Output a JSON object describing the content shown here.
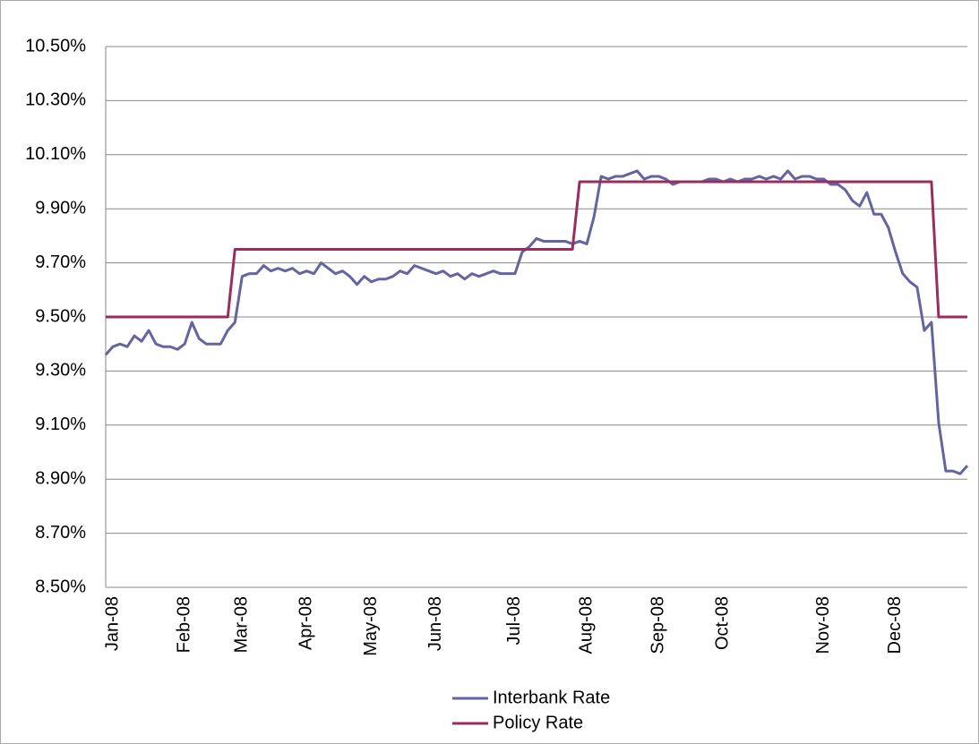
{
  "chart_data": {
    "type": "line",
    "categories": [
      null,
      "Jan-08",
      null,
      null,
      null,
      null,
      null,
      null,
      null,
      null,
      null,
      "Feb-08",
      null,
      null,
      null,
      null,
      null,
      null,
      null,
      "Mar-08",
      null,
      null,
      null,
      null,
      null,
      null,
      null,
      null,
      "Apr-08",
      null,
      null,
      null,
      null,
      null,
      null,
      null,
      null,
      "May-08",
      null,
      null,
      null,
      null,
      null,
      null,
      null,
      null,
      "Jun-08",
      null,
      null,
      null,
      null,
      null,
      null,
      null,
      null,
      null,
      null,
      "Jul-08",
      null,
      null,
      null,
      null,
      null,
      null,
      null,
      null,
      null,
      "Aug-08",
      null,
      null,
      null,
      null,
      null,
      null,
      null,
      null,
      null,
      "Sep-08",
      null,
      null,
      null,
      null,
      null,
      null,
      null,
      null,
      "Oct-08",
      null,
      null,
      null,
      null,
      null,
      null,
      null,
      null,
      null,
      null,
      null,
      null,
      null,
      "Nov-08",
      null,
      null,
      null,
      null,
      null,
      null,
      null,
      null,
      null,
      "Dec-08",
      null,
      null,
      null,
      null,
      null,
      null,
      null,
      null,
      null,
      null
    ],
    "series": [
      {
        "name": "Interbank Rate",
        "color": "#6464a0",
        "values": [
          9.36,
          9.39,
          9.4,
          9.39,
          9.43,
          9.41,
          9.45,
          9.4,
          9.39,
          9.39,
          9.38,
          9.4,
          9.48,
          9.42,
          9.4,
          9.4,
          9.4,
          9.45,
          9.48,
          9.65,
          9.66,
          9.66,
          9.69,
          9.67,
          9.68,
          9.67,
          9.68,
          9.66,
          9.67,
          9.66,
          9.7,
          9.68,
          9.66,
          9.67,
          9.65,
          9.62,
          9.65,
          9.63,
          9.64,
          9.64,
          9.65,
          9.67,
          9.66,
          9.69,
          9.68,
          9.67,
          9.66,
          9.67,
          9.65,
          9.66,
          9.64,
          9.66,
          9.65,
          9.66,
          9.67,
          9.66,
          9.66,
          9.66,
          9.74,
          9.76,
          9.79,
          9.78,
          9.78,
          9.78,
          9.78,
          9.77,
          9.78,
          9.77,
          9.87,
          10.02,
          10.01,
          10.02,
          10.02,
          10.03,
          10.04,
          10.01,
          10.02,
          10.02,
          10.01,
          9.99,
          10.0,
          10.0,
          10.0,
          10.0,
          10.01,
          10.01,
          10.0,
          10.01,
          10.0,
          10.01,
          10.01,
          10.02,
          10.01,
          10.02,
          10.01,
          10.04,
          10.01,
          10.02,
          10.02,
          10.01,
          10.01,
          9.99,
          9.99,
          9.97,
          9.93,
          9.91,
          9.96,
          9.88,
          9.88,
          9.83,
          9.74,
          9.66,
          9.63,
          9.61,
          9.45,
          9.48,
          9.11,
          8.93,
          8.93,
          8.92,
          8.95
        ]
      },
      {
        "name": "Policy Rate",
        "color": "#9b2d5e",
        "values": [
          9.5,
          9.5,
          9.5,
          9.5,
          9.5,
          9.5,
          9.5,
          9.5,
          9.5,
          9.5,
          9.5,
          9.5,
          9.5,
          9.5,
          9.5,
          9.5,
          9.5,
          9.5,
          9.75,
          9.75,
          9.75,
          9.75,
          9.75,
          9.75,
          9.75,
          9.75,
          9.75,
          9.75,
          9.75,
          9.75,
          9.75,
          9.75,
          9.75,
          9.75,
          9.75,
          9.75,
          9.75,
          9.75,
          9.75,
          9.75,
          9.75,
          9.75,
          9.75,
          9.75,
          9.75,
          9.75,
          9.75,
          9.75,
          9.75,
          9.75,
          9.75,
          9.75,
          9.75,
          9.75,
          9.75,
          9.75,
          9.75,
          9.75,
          9.75,
          9.75,
          9.75,
          9.75,
          9.75,
          9.75,
          9.75,
          9.75,
          10.0,
          10.0,
          10.0,
          10.0,
          10.0,
          10.0,
          10.0,
          10.0,
          10.0,
          10.0,
          10.0,
          10.0,
          10.0,
          10.0,
          10.0,
          10.0,
          10.0,
          10.0,
          10.0,
          10.0,
          10.0,
          10.0,
          10.0,
          10.0,
          10.0,
          10.0,
          10.0,
          10.0,
          10.0,
          10.0,
          10.0,
          10.0,
          10.0,
          10.0,
          10.0,
          10.0,
          10.0,
          10.0,
          10.0,
          10.0,
          10.0,
          10.0,
          10.0,
          10.0,
          10.0,
          10.0,
          10.0,
          10.0,
          10.0,
          10.0,
          9.5,
          9.5,
          9.5,
          9.5,
          9.5
        ]
      }
    ],
    "ylim": [
      8.5,
      10.5
    ],
    "yticks": [
      {
        "value": 8.5,
        "label": "8.50%"
      },
      {
        "value": 8.7,
        "label": "8.70%"
      },
      {
        "value": 8.9,
        "label": "8.90%"
      },
      {
        "value": 9.1,
        "label": "9.10%"
      },
      {
        "value": 9.3,
        "label": "9.30%"
      },
      {
        "value": 9.5,
        "label": "9.50%"
      },
      {
        "value": 9.7,
        "label": "9.70%"
      },
      {
        "value": 9.9,
        "label": "9.90%"
      },
      {
        "value": 10.1,
        "label": "10.10%"
      },
      {
        "value": 10.3,
        "label": "10.30%"
      },
      {
        "value": 10.5,
        "label": "10.50%"
      }
    ],
    "grid": true,
    "legend": "bottom"
  }
}
